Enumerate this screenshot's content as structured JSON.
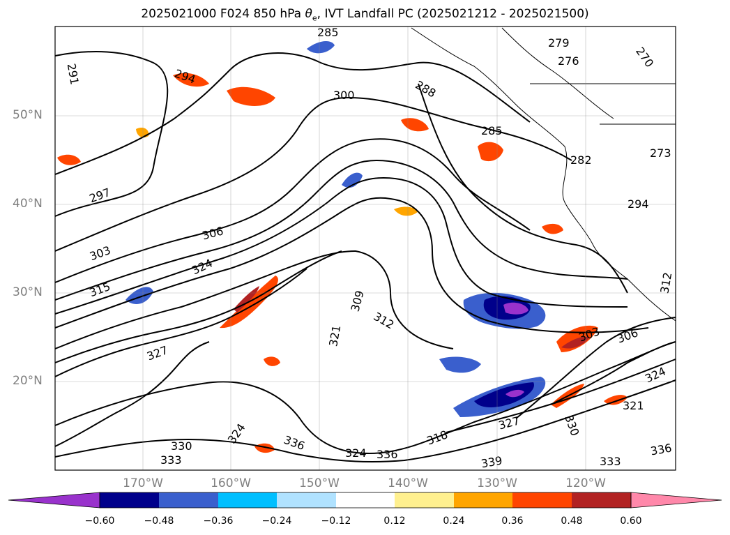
{
  "title_prefix": "2025021000 F024 850 hPa ",
  "title_theta": "θ",
  "title_sub": "e",
  "title_suffix": ", IVT Landfall PC (2025021212 - 2025021500)",
  "latitudes": [
    "50°N",
    "40°N",
    "30°N",
    "20°N"
  ],
  "longitudes": [
    "170°W",
    "160°W",
    "150°W",
    "140°W",
    "130°W",
    "120°W"
  ],
  "colorbar": {
    "colors": [
      "#9932cc",
      "#00008b",
      "#3a5fcd",
      "#00bfff",
      "#b0e2ff",
      "#ffffff",
      "#fff08f",
      "#ffa500",
      "#ff4500",
      "#b22222",
      "#ff88aa"
    ],
    "ticks": [
      "−0.60",
      "−0.48",
      "−0.36",
      "−0.24",
      "−0.12",
      "0.12",
      "0.24",
      "0.36",
      "0.48",
      "0.60"
    ]
  },
  "contour_labels": [
    "291",
    "294",
    "300",
    "288",
    "279",
    "276",
    "270",
    "285",
    "282",
    "273",
    "297",
    "306",
    "303",
    "294",
    "315",
    "324",
    "309",
    "312",
    "321",
    "327",
    "330",
    "333",
    "336",
    "339",
    "318",
    "303",
    "306",
    "324",
    "321",
    "336",
    "333",
    "336",
    "324",
    "324",
    "330",
    "327",
    "312",
    "285"
  ]
}
